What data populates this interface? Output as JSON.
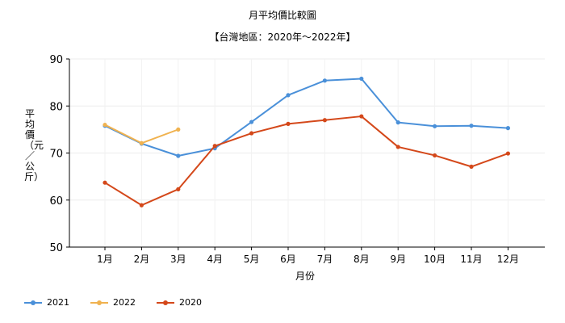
{
  "chart_data": {
    "type": "line",
    "title": "月平均價比較圖",
    "subtitle": "【台灣地區：2020年～2022年】",
    "xlabel": "月份",
    "ylabel": "平均價（元／公斤）",
    "categories": [
      "1月",
      "2月",
      "3月",
      "4月",
      "5月",
      "6月",
      "7月",
      "8月",
      "9月",
      "10月",
      "11月",
      "12月"
    ],
    "ylim": [
      50,
      90
    ],
    "yticks": [
      50,
      60,
      70,
      80,
      90
    ],
    "grid": true,
    "legend_position": "bottom-left",
    "series": [
      {
        "name": "2021",
        "color": "#4a90d9",
        "values": [
          75.8,
          72.0,
          69.4,
          71.0,
          76.6,
          82.3,
          85.4,
          85.8,
          76.5,
          75.7,
          75.8,
          75.3
        ]
      },
      {
        "name": "2022",
        "color": "#f0b24f",
        "values": [
          76.0,
          72.1,
          75.0,
          null,
          null,
          null,
          null,
          null,
          null,
          null,
          null,
          null
        ]
      },
      {
        "name": "2020",
        "color": "#d4481a",
        "values": [
          63.7,
          58.9,
          62.3,
          71.5,
          74.2,
          76.2,
          77.0,
          77.8,
          71.3,
          69.5,
          67.1,
          69.9
        ]
      }
    ]
  }
}
